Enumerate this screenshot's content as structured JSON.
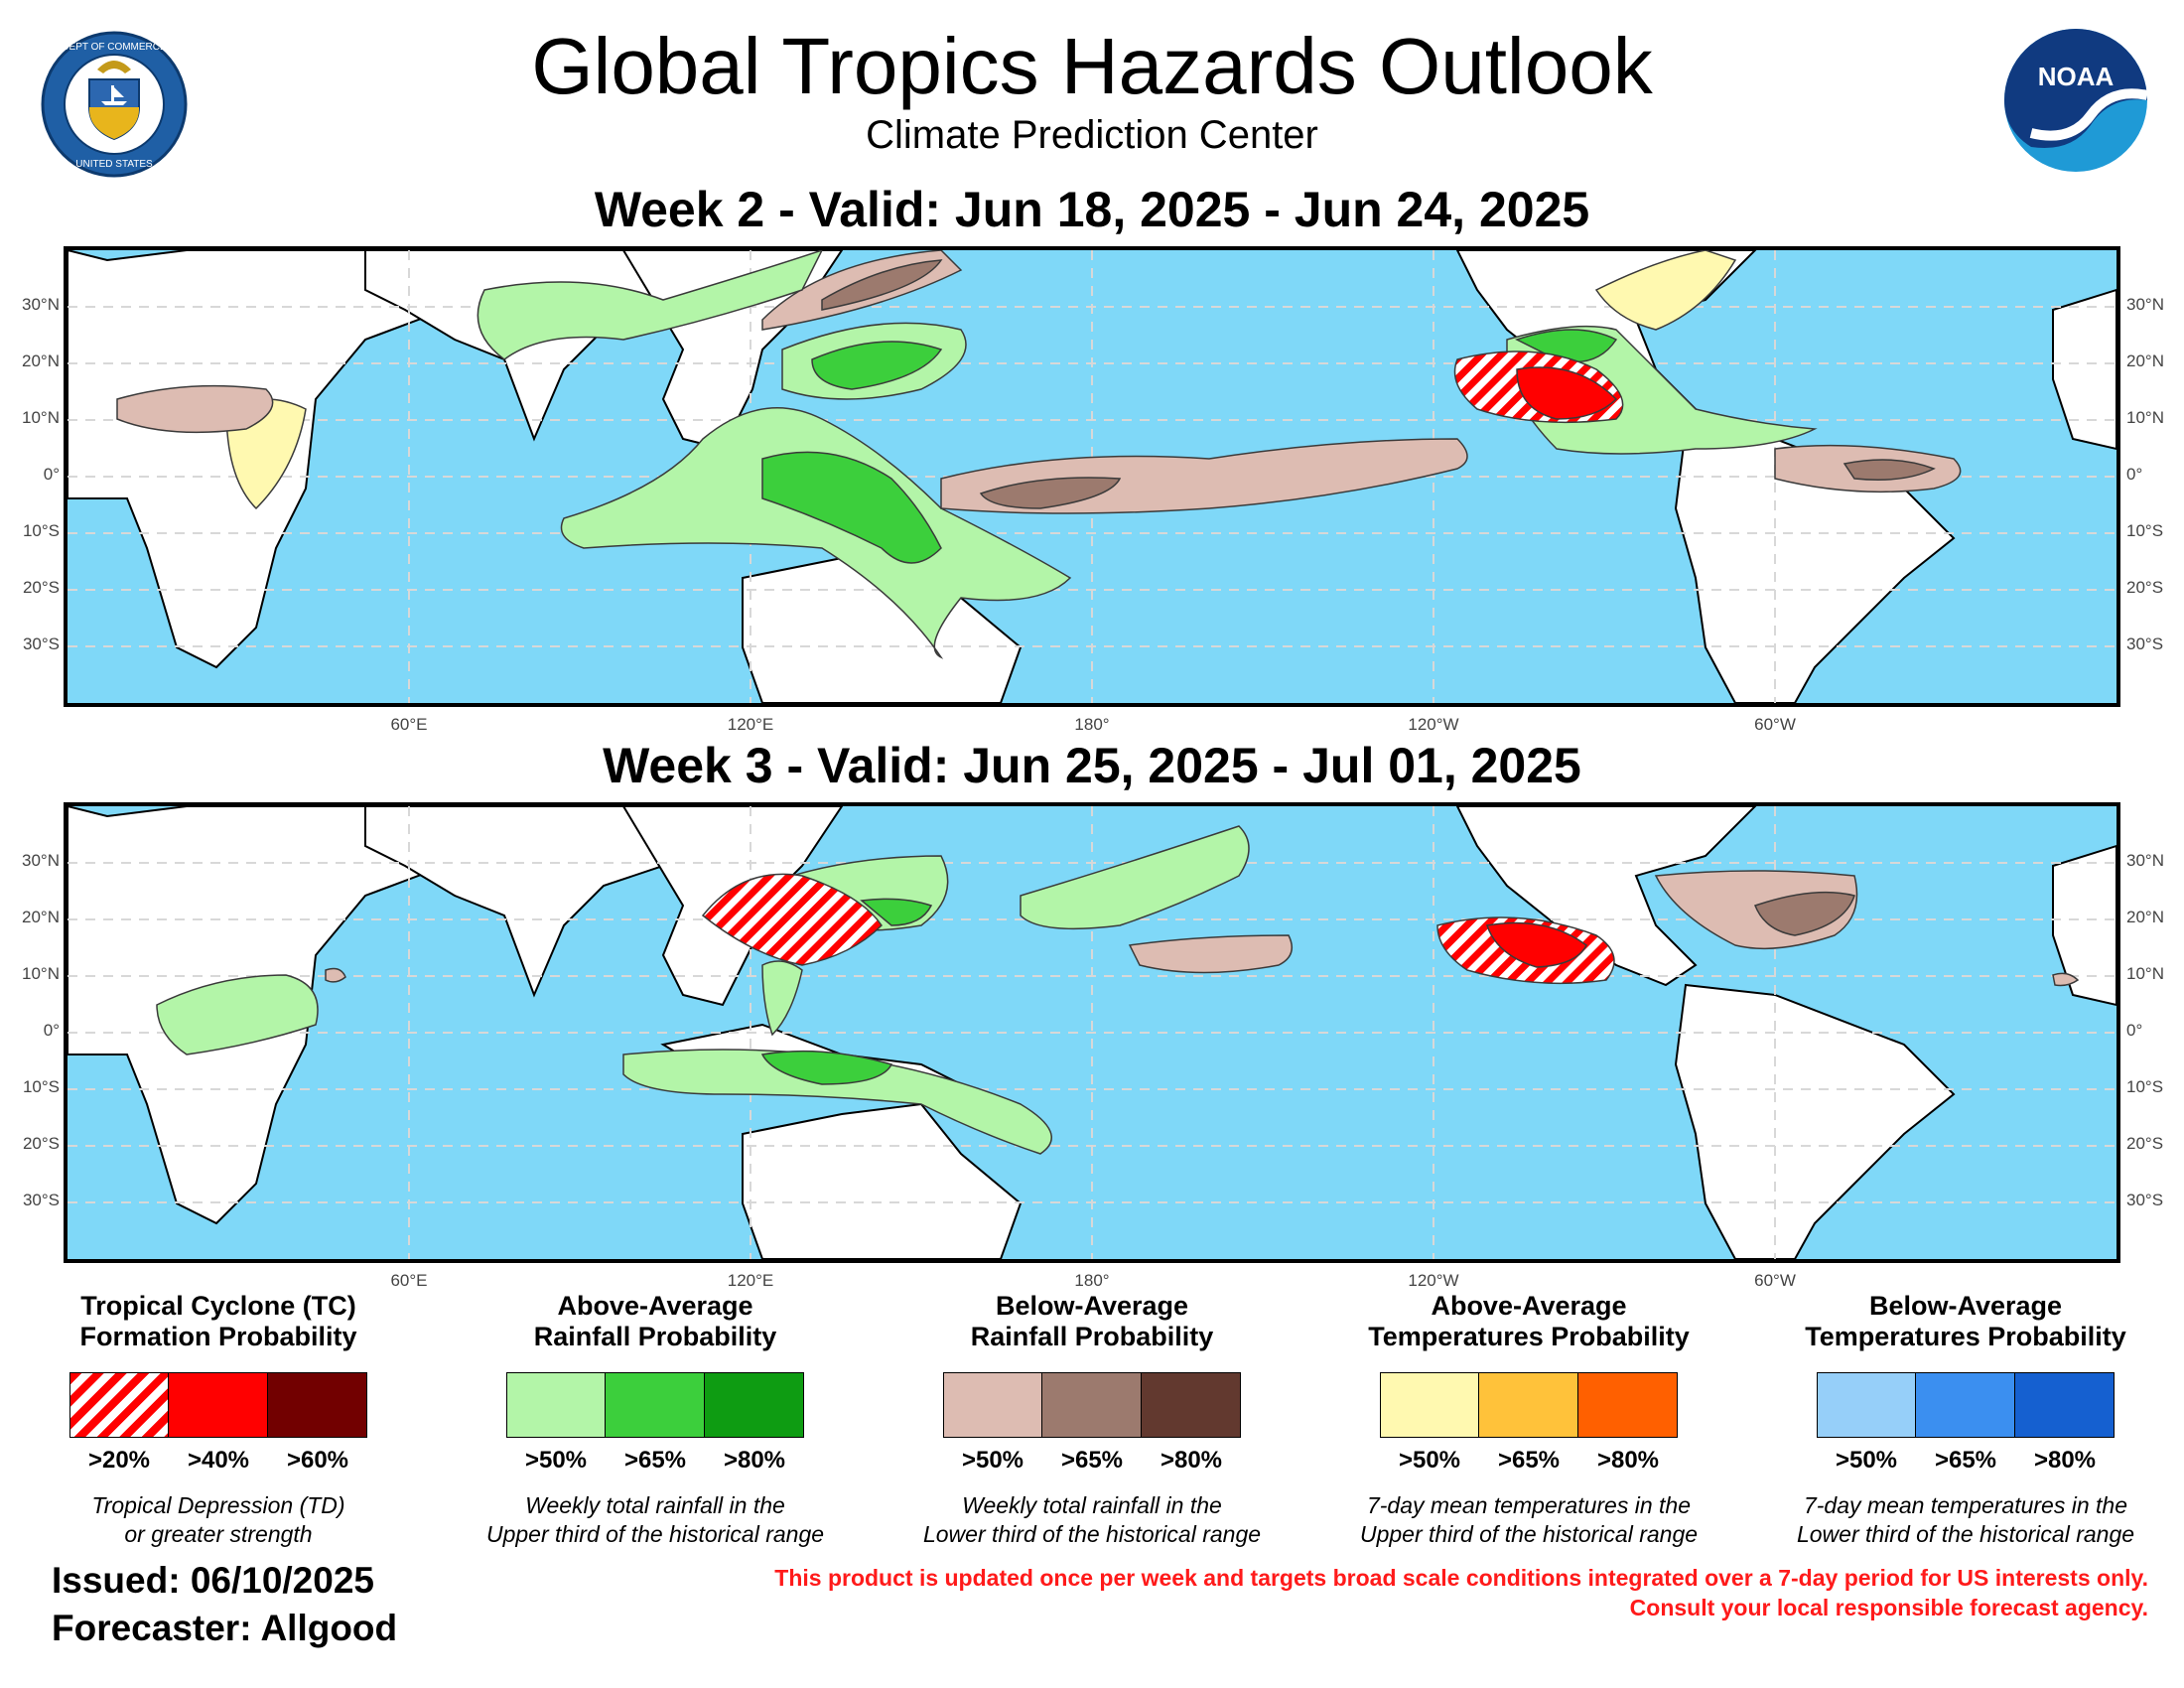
{
  "header": {
    "title": "Global Tropics Hazards Outlook",
    "subtitle": "Climate Prediction Center"
  },
  "maps": [
    {
      "title": "Week 2 - Valid: Jun 18, 2025 - Jun 24, 2025"
    },
    {
      "title": "Week 3 - Valid: Jun 25, 2025 - Jul 01, 2025"
    }
  ],
  "axes": {
    "lat_labels": [
      "30°N",
      "20°N",
      "10°N",
      "0°",
      "10°S",
      "20°S",
      "30°S"
    ],
    "lon_labels": [
      "60°E",
      "120°E",
      "180°",
      "120°W",
      "60°W"
    ]
  },
  "legend": [
    {
      "heading_line1": "Tropical Cyclone (TC)",
      "heading_line2": "Formation Probability",
      "labels": [
        ">20%",
        ">40%",
        ">60%"
      ],
      "colors": [
        "hatched-red",
        "#ff0000",
        "#720000"
      ],
      "note_line1": "Tropical Depression (TD)",
      "note_line2": "or greater strength"
    },
    {
      "heading_line1": "Above-Average",
      "heading_line2": "Rainfall Probability",
      "labels": [
        ">50%",
        ">65%",
        ">80%"
      ],
      "colors": [
        "#b3f5a8",
        "#3ccf3c",
        "#0e9c12"
      ],
      "note_line1": "Weekly total rainfall in the",
      "note_line2": "Upper third of the historical range"
    },
    {
      "heading_line1": "Below-Average",
      "heading_line2": "Rainfall Probability",
      "labels": [
        ">50%",
        ">65%",
        ">80%"
      ],
      "colors": [
        "#ddbcb2",
        "#9c7a6e",
        "#62392f"
      ],
      "note_line1": "Weekly total rainfall in the",
      "note_line2": "Lower third of the historical range"
    },
    {
      "heading_line1": "Above-Average",
      "heading_line2": "Temperatures Probability",
      "labels": [
        ">50%",
        ">65%",
        ">80%"
      ],
      "colors": [
        "#fff9b0",
        "#ffc23a",
        "#ff6000"
      ],
      "note_line1": "7-day mean temperatures in the",
      "note_line2": "Upper third of the historical range"
    },
    {
      "heading_line1": "Below-Average",
      "heading_line2": "Temperatures Probability",
      "labels": [
        ">50%",
        ">65%",
        ">80%"
      ],
      "colors": [
        "#96cff9",
        "#3b8ff0",
        "#1560d0"
      ],
      "note_line1": "7-day mean temperatures in the",
      "note_line2": "Lower third of the historical range"
    }
  ],
  "footer": {
    "issued": "Issued: 06/10/2025",
    "forecaster": "Forecaster: Allgood",
    "disclaimer_line1": "This product is updated once per week and targets broad scale conditions integrated over a 7-day period for US interests only.",
    "disclaimer_line2": "Consult your local responsible forecast agency."
  },
  "logos": {
    "left": "department-of-commerce-seal",
    "left_ring_text": "DEPARTMENT OF COMMERCE · UNITED STATES OF AMERICA",
    "right": "noaa-logo",
    "right_text": "NOAA"
  }
}
